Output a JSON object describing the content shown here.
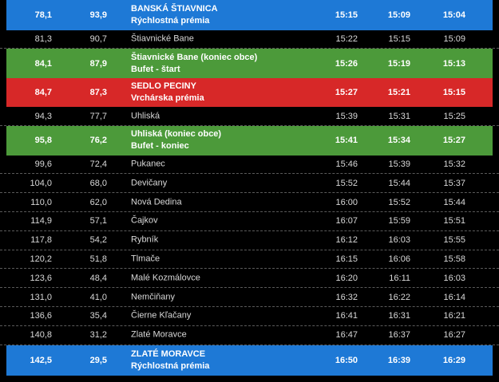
{
  "rows": [
    {
      "km_from_start": "78,1",
      "km_to_finish": "93,9",
      "place": [
        "BANSKÁ ŠTIAVNICA",
        "Rýchlostná prémia"
      ],
      "times": [
        "15:15",
        "15:09",
        "15:04"
      ],
      "style": "blue"
    },
    {
      "km_from_start": "81,3",
      "km_to_finish": "90,7",
      "place": [
        "Štiavnické Bane"
      ],
      "times": [
        "15:22",
        "15:15",
        "15:09"
      ],
      "style": "plain"
    },
    {
      "km_from_start": "84,1",
      "km_to_finish": "87,9",
      "place": [
        "Štiavnické Bane (koniec obce)",
        "Bufet - štart"
      ],
      "times": [
        "15:26",
        "15:19",
        "15:13"
      ],
      "style": "green"
    },
    {
      "km_from_start": "84,7",
      "km_to_finish": "87,3",
      "place": [
        "SEDLO PECINY",
        "Vrchárska prémia"
      ],
      "times": [
        "15:27",
        "15:21",
        "15:15"
      ],
      "style": "red"
    },
    {
      "km_from_start": "94,3",
      "km_to_finish": "77,7",
      "place": [
        "Uhliská"
      ],
      "times": [
        "15:39",
        "15:31",
        "15:25"
      ],
      "style": "plain"
    },
    {
      "km_from_start": "95,8",
      "km_to_finish": "76,2",
      "place": [
        "Uhliská (koniec obce)",
        "Bufet - koniec"
      ],
      "times": [
        "15:41",
        "15:34",
        "15:27"
      ],
      "style": "green"
    },
    {
      "km_from_start": "99,6",
      "km_to_finish": "72,4",
      "place": [
        "Pukanec"
      ],
      "times": [
        "15:46",
        "15:39",
        "15:32"
      ],
      "style": "plain"
    },
    {
      "km_from_start": "104,0",
      "km_to_finish": "68,0",
      "place": [
        "Devičany"
      ],
      "times": [
        "15:52",
        "15:44",
        "15:37"
      ],
      "style": "plain"
    },
    {
      "km_from_start": "110,0",
      "km_to_finish": "62,0",
      "place": [
        "Nová Dedina"
      ],
      "times": [
        "16:00",
        "15:52",
        "15:44"
      ],
      "style": "plain"
    },
    {
      "km_from_start": "114,9",
      "km_to_finish": "57,1",
      "place": [
        "Čajkov"
      ],
      "times": [
        "16:07",
        "15:59",
        "15:51"
      ],
      "style": "plain"
    },
    {
      "km_from_start": "117,8",
      "km_to_finish": "54,2",
      "place": [
        "Rybník"
      ],
      "times": [
        "16:12",
        "16:03",
        "15:55"
      ],
      "style": "plain"
    },
    {
      "km_from_start": "120,2",
      "km_to_finish": "51,8",
      "place": [
        "Tlmače"
      ],
      "times": [
        "16:15",
        "16:06",
        "15:58"
      ],
      "style": "plain"
    },
    {
      "km_from_start": "123,6",
      "km_to_finish": "48,4",
      "place": [
        "Malé Kozmálovce"
      ],
      "times": [
        "16:20",
        "16:11",
        "16:03"
      ],
      "style": "plain"
    },
    {
      "km_from_start": "131,0",
      "km_to_finish": "41,0",
      "place": [
        "Nemčiňany"
      ],
      "times": [
        "16:32",
        "16:22",
        "16:14"
      ],
      "style": "plain"
    },
    {
      "km_from_start": "136,6",
      "km_to_finish": "35,4",
      "place": [
        "Čierne Kľačany"
      ],
      "times": [
        "16:41",
        "16:31",
        "16:21"
      ],
      "style": "plain"
    },
    {
      "km_from_start": "140,8",
      "km_to_finish": "31,2",
      "place": [
        "Zlaté Moravce"
      ],
      "times": [
        "16:47",
        "16:37",
        "16:27"
      ],
      "style": "plain"
    },
    {
      "km_from_start": "142,5",
      "km_to_finish": "29,5",
      "place": [
        "ZLATÉ MORAVCE",
        "Rýchlostná prémia"
      ],
      "times": [
        "16:50",
        "16:39",
        "16:29"
      ],
      "style": "blue"
    }
  ],
  "colors": {
    "blue": "#1e79d6",
    "green": "#4c9a3a",
    "red": "#d72828",
    "background": "#000000",
    "text": "#d8d8d8"
  }
}
